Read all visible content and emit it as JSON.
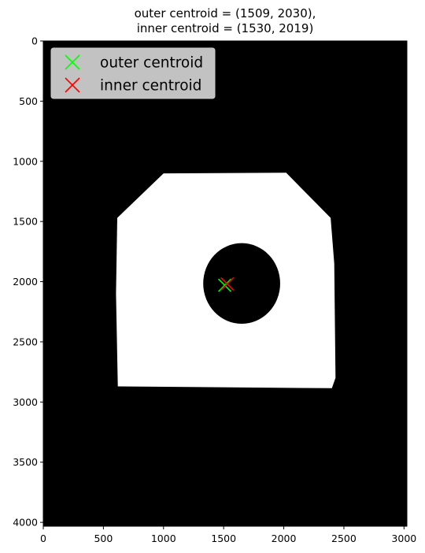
{
  "chart_data": {
    "type": "scatter",
    "title": "outer centroid = (1509, 2030),\ninner centroid = (1530, 2019)",
    "title_lines": [
      "outer centroid = (1509, 2030),",
      "inner centroid = (1530, 2019)"
    ],
    "xlabel": "",
    "ylabel": "",
    "xlim": [
      0,
      3024
    ],
    "ylim": [
      4032,
      0
    ],
    "x_ticks": [
      0,
      500,
      1000,
      1500,
      2000,
      2500,
      3000
    ],
    "y_ticks": [
      0,
      500,
      1000,
      1500,
      2000,
      2500,
      3000,
      3500,
      4000
    ],
    "grid": false,
    "legend_position": "top-left",
    "background_image": {
      "description_color": "#000000",
      "shape_color": "#ffffff",
      "outer_polygon": [
        [
          1000,
          1100
        ],
        [
          2020,
          1095
        ],
        [
          2390,
          1470
        ],
        [
          2420,
          1850
        ],
        [
          2430,
          2800
        ],
        [
          2400,
          2885
        ],
        [
          620,
          2870
        ],
        [
          605,
          2100
        ],
        [
          615,
          1470
        ]
      ],
      "hole_ellipse": {
        "cx": 1650,
        "cy": 2015,
        "rx": 320,
        "ry": 335
      }
    },
    "series": [
      {
        "name": "outer centroid",
        "color": "#00ff00",
        "marker": "x",
        "x": [
          1509
        ],
        "y": [
          2030
        ]
      },
      {
        "name": "inner centroid",
        "color": "#ff0000",
        "marker": "x",
        "x": [
          1530
        ],
        "y": [
          2019
        ]
      }
    ]
  }
}
